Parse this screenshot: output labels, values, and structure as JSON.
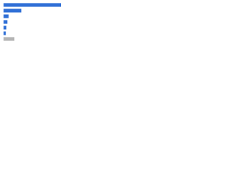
{
  "chart_data": {
    "type": "bar",
    "orientation": "horizontal",
    "categories": [
      null,
      null,
      null,
      null,
      null,
      null,
      null
    ],
    "values": [
      90,
      28,
      8,
      6,
      4.5,
      3.5,
      17
    ],
    "colors": [
      "#2f6fd6",
      "#2f6fd6",
      "#2f6fd6",
      "#2f6fd6",
      "#2f6fd6",
      "#2f6fd6",
      "#b4b4b4"
    ],
    "xlim": [
      0,
      100
    ]
  }
}
